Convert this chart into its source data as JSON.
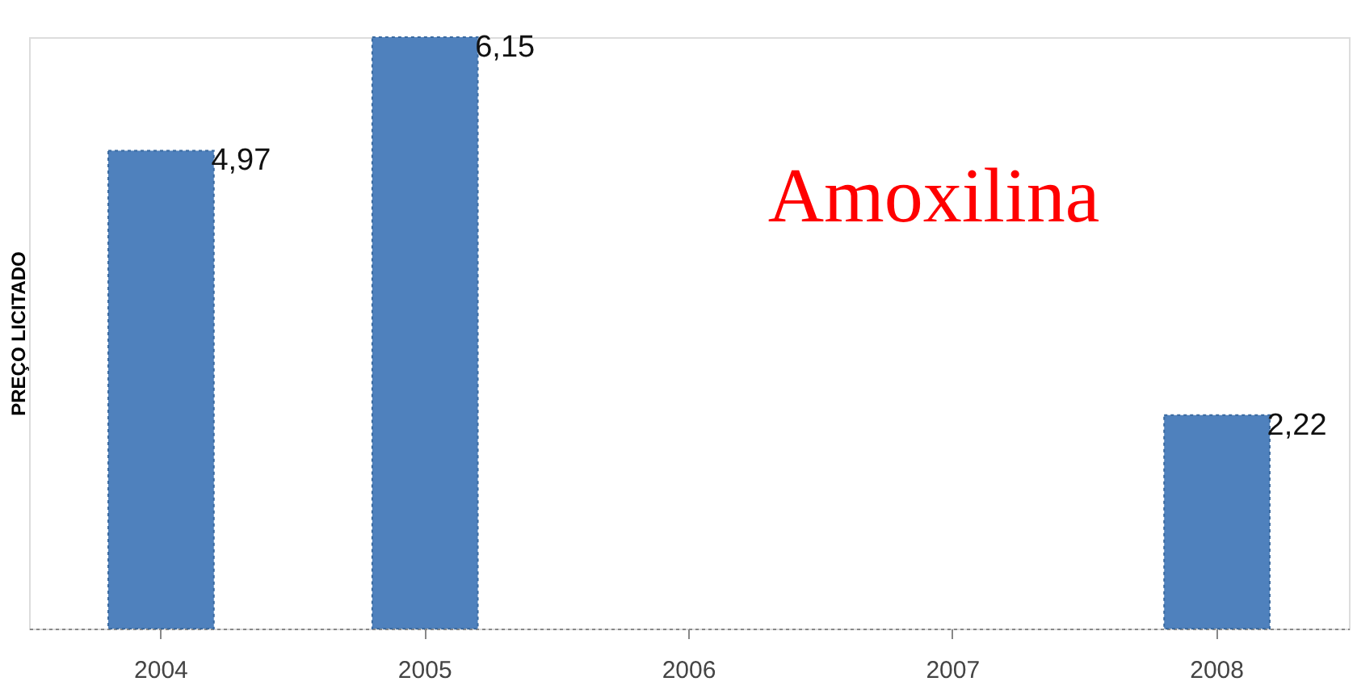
{
  "chart_data": {
    "type": "bar",
    "ylabel": "PREÇO LICITADO",
    "categories": [
      "2004",
      "2005",
      "2006",
      "2007",
      "2008"
    ],
    "values": [
      4.97,
      6.15,
      null,
      null,
      2.22
    ],
    "value_labels": [
      "4,97",
      "6,15",
      null,
      null,
      "2,22"
    ],
    "color": "#4f81bd",
    "annotations": [
      "Amoxilina"
    ],
    "grid": false
  }
}
